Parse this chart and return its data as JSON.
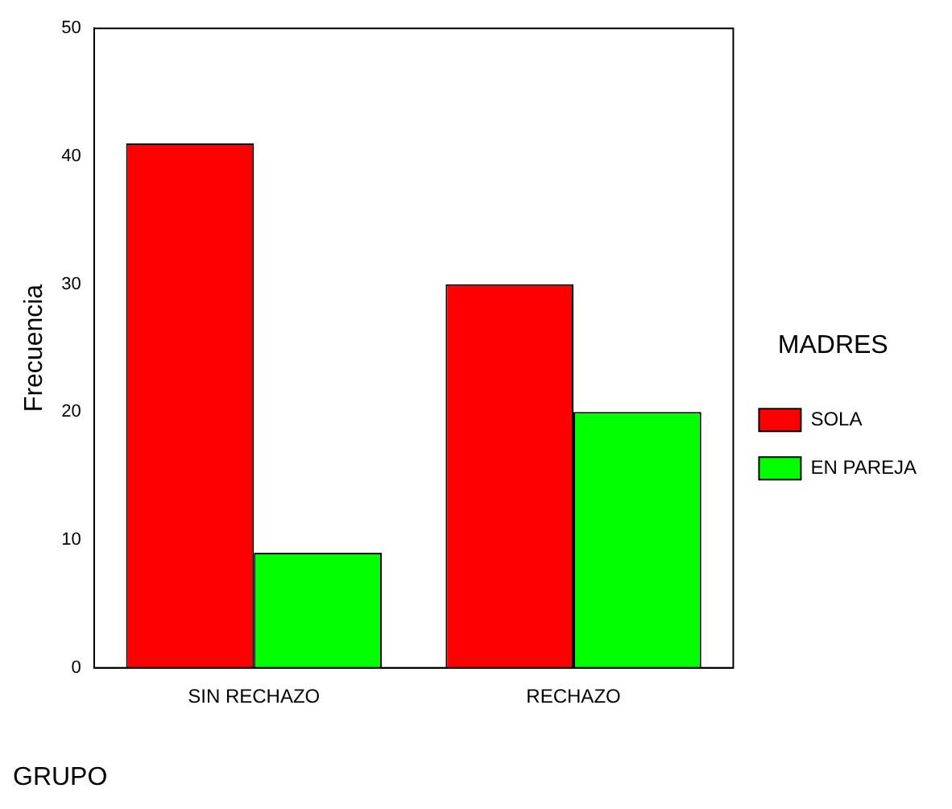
{
  "chart_data": {
    "type": "bar",
    "xlabel": "GRUPO",
    "ylabel": "Frecuencia",
    "legend_title": "MADRES",
    "categories": [
      "SIN RECHAZO",
      "RECHAZO"
    ],
    "series": [
      {
        "name": "SOLA",
        "color": "#ff0000",
        "values": [
          41,
          30
        ]
      },
      {
        "name": "EN PAREJA",
        "color": "#00ff00",
        "values": [
          9,
          20
        ]
      }
    ],
    "ylim": [
      0,
      50
    ],
    "yticks": [
      0,
      10,
      20,
      30,
      40,
      50
    ],
    "grid": false,
    "legend": "right"
  }
}
